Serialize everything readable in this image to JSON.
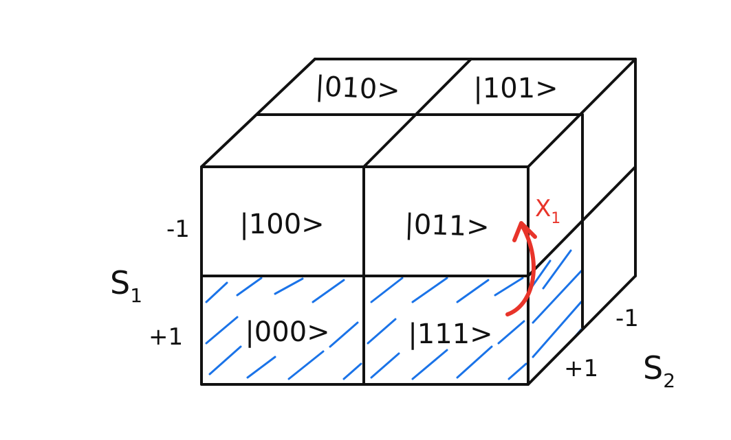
{
  "diagram": {
    "states": {
      "top_back_left": "|010>",
      "top_back_right": "|101>",
      "front_top_left": "|100>",
      "front_top_right": "|011>",
      "front_bottom_left": "|000>",
      "front_bottom_right": "|111>"
    },
    "axis_s1": {
      "label": "S",
      "subscript": "1",
      "upper_value": "-1",
      "lower_value": "+1"
    },
    "axis_s2": {
      "label": "S",
      "subscript": "2",
      "back_value": "-1",
      "front_value": "+1"
    },
    "operator": {
      "label": "X",
      "subscript": "1"
    },
    "colors": {
      "ink": "#111111",
      "hatch": "#1a73e8",
      "operator": "#e8342a"
    }
  }
}
